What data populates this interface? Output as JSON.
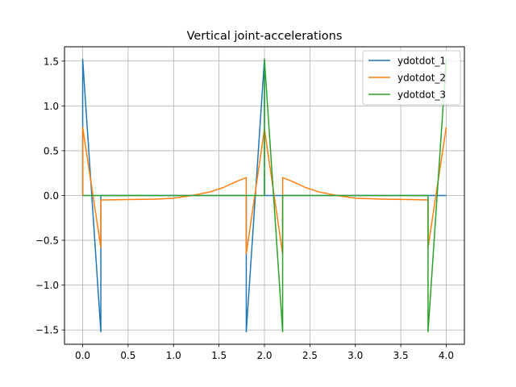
{
  "chart_data": {
    "type": "line",
    "title": "Vertical joint-accelerations",
    "xlabel": "",
    "ylabel": "",
    "xlim": [
      -0.2,
      4.2
    ],
    "ylim": [
      -1.66,
      1.66
    ],
    "xticks": [
      0.0,
      0.5,
      1.0,
      1.5,
      2.0,
      2.5,
      3.0,
      3.5,
      4.0
    ],
    "xtick_labels": [
      "0.0",
      "0.5",
      "1.0",
      "1.5",
      "2.0",
      "2.5",
      "3.0",
      "3.5",
      "4.0"
    ],
    "yticks": [
      -1.5,
      -1.0,
      -0.5,
      0.0,
      0.5,
      1.0,
      1.5
    ],
    "ytick_labels": [
      "−1.5",
      "−1.0",
      "−0.5",
      "0.0",
      "0.5",
      "1.0",
      "1.5"
    ],
    "grid": true,
    "legend_position": "top-right",
    "series": [
      {
        "name": "ydotdot_1",
        "color": "#1f77b4",
        "x": [
          0.0,
          0.0,
          0.2,
          0.2,
          1.8,
          1.8,
          2.0,
          2.0,
          4.0
        ],
        "y": [
          0.0,
          1.52,
          -1.52,
          0.0,
          0.0,
          -1.52,
          1.52,
          0.0,
          0.0
        ]
      },
      {
        "name": "ydotdot_2",
        "color": "#ff7f0e",
        "x": [
          0.0,
          0.0,
          0.2,
          0.2,
          0.5,
          0.8,
          1.0,
          1.2,
          1.4,
          1.55,
          1.7,
          1.8,
          1.8,
          2.0,
          2.2,
          2.2,
          2.3,
          2.45,
          2.6,
          2.8,
          3.0,
          3.3,
          3.6,
          3.8,
          3.8,
          4.0
        ],
        "y": [
          0.0,
          0.76,
          -0.58,
          -0.05,
          -0.045,
          -0.04,
          -0.03,
          0.0,
          0.04,
          0.09,
          0.16,
          0.2,
          -0.65,
          0.74,
          -0.65,
          0.2,
          0.16,
          0.09,
          0.04,
          0.0,
          -0.03,
          -0.04,
          -0.045,
          -0.05,
          -0.58,
          0.76
        ]
      },
      {
        "name": "ydotdot_3",
        "color": "#2ca02c",
        "x": [
          0.0,
          2.0,
          2.0,
          2.2,
          2.2,
          3.8,
          3.8,
          4.0
        ],
        "y": [
          0.0,
          0.0,
          1.52,
          -1.52,
          0.0,
          0.0,
          -1.52,
          1.52
        ]
      }
    ]
  }
}
